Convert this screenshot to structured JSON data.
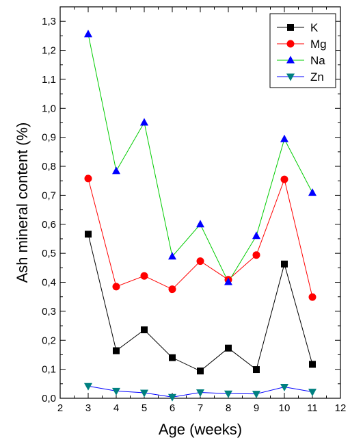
{
  "chart_data": {
    "type": "line",
    "xlabel": "Age (weeks)",
    "ylabel": "Ash mineral content (%)",
    "xlim": [
      2,
      12
    ],
    "ylim": [
      0.0,
      1.35
    ],
    "x_ticks": [
      "2",
      "3",
      "4",
      "5",
      "6",
      "7",
      "8",
      "9",
      "10",
      "11",
      "12"
    ],
    "y_ticks": [
      "0,0",
      "0,1",
      "0,2",
      "0,3",
      "0,4",
      "0,5",
      "0,6",
      "0,7",
      "0,8",
      "0,9",
      "1,0",
      "1,1",
      "1,2",
      "1,3"
    ],
    "x": [
      3,
      4,
      5,
      6,
      7,
      8,
      9,
      10,
      11
    ],
    "grid": false,
    "legend_position": "top-right",
    "series": [
      {
        "name": "K",
        "color": "#000000",
        "marker": "square",
        "values": [
          0.566,
          0.164,
          0.236,
          0.14,
          0.094,
          0.173,
          0.099,
          0.463,
          0.117
        ]
      },
      {
        "name": "Mg",
        "color": "#ff0000",
        "marker": "circle",
        "values": [
          0.758,
          0.385,
          0.422,
          0.376,
          0.473,
          0.409,
          0.494,
          0.755,
          0.349
        ]
      },
      {
        "name": "Na",
        "color": "#00cc00",
        "marker_color": "#0000ff",
        "marker": "triangle-up",
        "values": [
          1.256,
          0.784,
          0.951,
          0.489,
          0.6,
          0.401,
          0.56,
          0.894,
          0.709
        ]
      },
      {
        "name": "Zn",
        "color": "#0000ff",
        "marker_color": "#008080",
        "marker": "triangle-down",
        "values": [
          0.042,
          0.025,
          0.019,
          0.004,
          0.02,
          0.016,
          0.015,
          0.039,
          0.022
        ]
      }
    ]
  }
}
